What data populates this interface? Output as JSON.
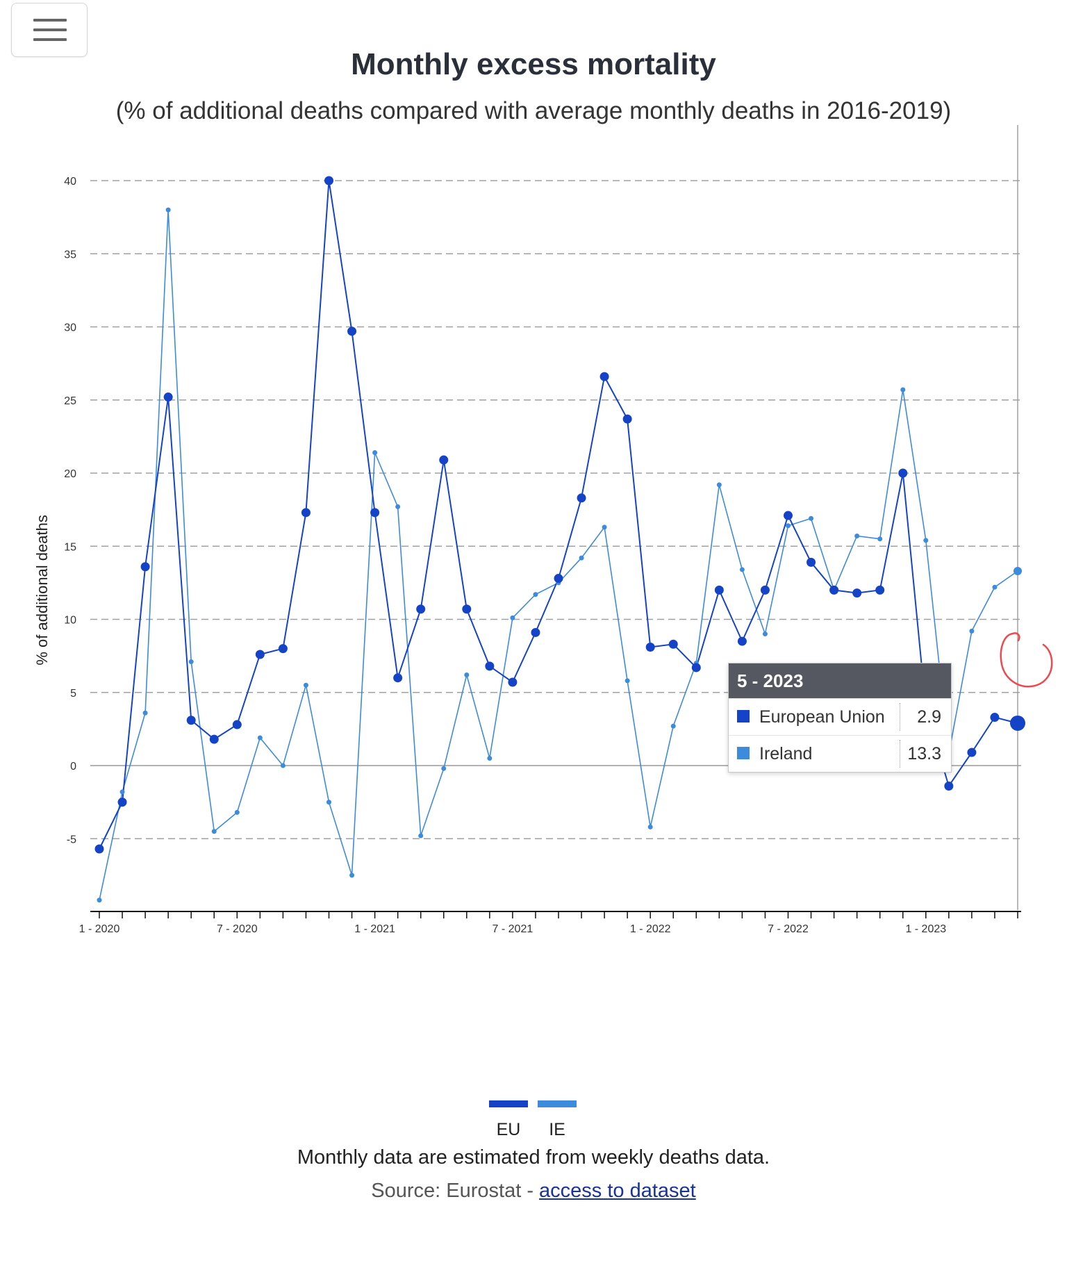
{
  "toolbar": {
    "menu_icon": "hamburger-menu-icon"
  },
  "title": "Monthly excess mortality",
  "subtitle": "(% of additional deaths compared with average monthly deaths in 2016-2019)",
  "chart_data": {
    "type": "line",
    "title": "Monthly excess mortality",
    "subtitle": "(% of additional deaths compared with average monthly deaths in 2016-2019)",
    "xlabel": "",
    "ylabel": "% of additional deaths",
    "ylim": [
      -10,
      42
    ],
    "yticks": [
      -5,
      0,
      5,
      10,
      15,
      20,
      25,
      30,
      35,
      40
    ],
    "x_tick_labels": [
      {
        "index": 0,
        "label": "1 - 2020"
      },
      {
        "index": 6,
        "label": "7 - 2020"
      },
      {
        "index": 12,
        "label": "1 - 2021"
      },
      {
        "index": 18,
        "label": "7 - 2021"
      },
      {
        "index": 24,
        "label": "1 - 2022"
      },
      {
        "index": 30,
        "label": "7 - 2022"
      },
      {
        "index": 36,
        "label": "1 - 2023"
      }
    ],
    "x": [
      "1 - 2020",
      "2 - 2020",
      "3 - 2020",
      "4 - 2020",
      "5 - 2020",
      "6 - 2020",
      "7 - 2020",
      "8 - 2020",
      "9 - 2020",
      "10 - 2020",
      "11 - 2020",
      "12 - 2020",
      "1 - 2021",
      "2 - 2021",
      "3 - 2021",
      "4 - 2021",
      "5 - 2021",
      "6 - 2021",
      "7 - 2021",
      "8 - 2021",
      "9 - 2021",
      "10 - 2021",
      "11 - 2021",
      "12 - 2021",
      "1 - 2022",
      "2 - 2022",
      "3 - 2022",
      "4 - 2022",
      "5 - 2022",
      "6 - 2022",
      "7 - 2022",
      "8 - 2022",
      "9 - 2022",
      "10 - 2022",
      "11 - 2022",
      "12 - 2022",
      "1 - 2023",
      "2 - 2023",
      "3 - 2023",
      "4 - 2023",
      "5 - 2023"
    ],
    "grid": "horizontal-dashed",
    "legend_position": "bottom-center",
    "series": [
      {
        "name": "EU",
        "color": "#1443c8",
        "values": [
          -5.7,
          -2.5,
          13.6,
          25.2,
          3.1,
          1.8,
          2.8,
          7.6,
          8.0,
          17.3,
          40.0,
          29.7,
          17.3,
          6.0,
          10.7,
          20.9,
          10.7,
          6.8,
          5.7,
          9.1,
          12.8,
          18.3,
          26.6,
          23.7,
          8.1,
          8.3,
          6.7,
          12.0,
          8.5,
          12.0,
          17.1,
          13.9,
          12.0,
          11.8,
          12.0,
          20.0,
          3.9,
          -1.4,
          0.9,
          3.3,
          2.9
        ]
      },
      {
        "name": "IE",
        "color": "#3d8bdc",
        "values": [
          -9.2,
          -1.8,
          3.6,
          38.0,
          7.1,
          -4.5,
          -3.2,
          1.9,
          0.0,
          5.5,
          -2.5,
          -7.5,
          21.4,
          17.7,
          -4.8,
          -0.2,
          6.2,
          0.5,
          10.1,
          11.7,
          12.5,
          14.2,
          16.3,
          5.8,
          -4.2,
          2.7,
          7.0,
          19.2,
          13.4,
          9.0,
          16.4,
          16.9,
          12.0,
          15.7,
          15.5,
          25.7,
          15.4,
          0.8,
          9.2,
          12.2,
          13.3
        ]
      }
    ],
    "tooltip": {
      "header": "5 - 2023",
      "rows": [
        {
          "name": "European Union",
          "value": "2.9",
          "color": "#1443c8"
        },
        {
          "name": "Ireland",
          "value": "13.3",
          "color": "#3d8bdc"
        }
      ]
    }
  },
  "legend": {
    "eu_label": "EU",
    "ie_label": "IE"
  },
  "footer": {
    "note": "Monthly data are estimated from weekly deaths data.",
    "source_prefix": "Source: Eurostat - ",
    "source_link": "access to dataset"
  },
  "annotation": {
    "type": "hand-drawn circle",
    "color": "#f0484e"
  }
}
